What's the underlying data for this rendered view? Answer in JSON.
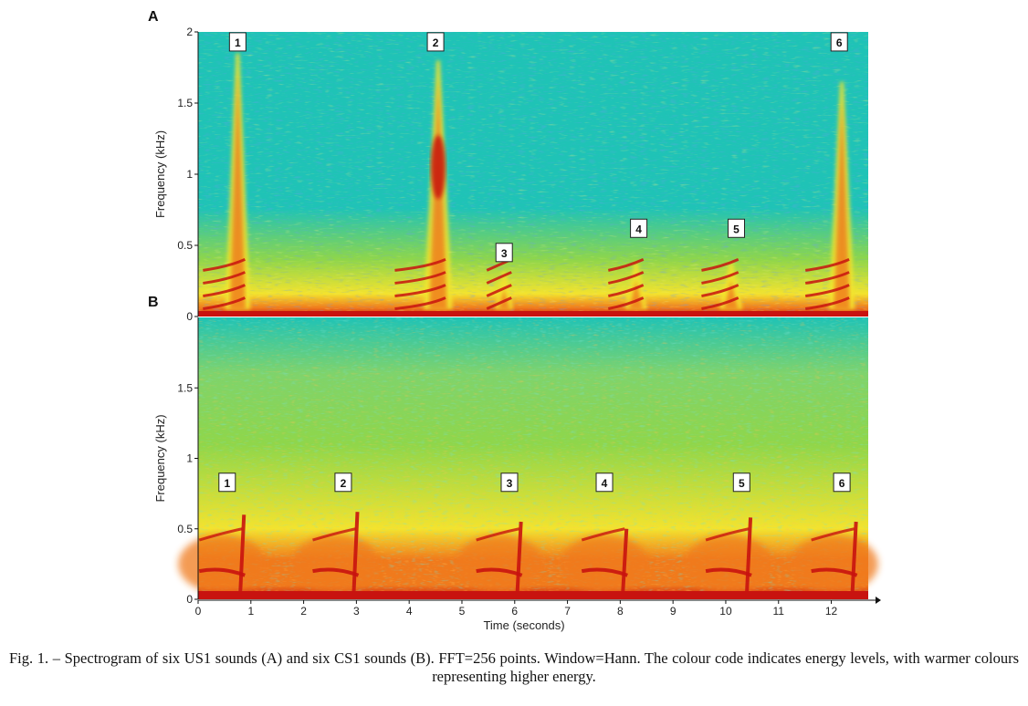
{
  "figure": {
    "caption": "Fig. 1. – Spectrogram of six US1 sounds (A) and six CS1 sounds (B). FFT=256 points. Window=Hann. The colour code indicates energy levels, with warmer colours representing higher energy.",
    "colors": {
      "low": "#2a6fd6",
      "mid_low": "#1fc3b6",
      "mid": "#8fd64a",
      "mid_high": "#f3e32e",
      "high": "#f07a1c",
      "max": "#c8130f"
    }
  },
  "chart_data": [
    {
      "type": "heatmap",
      "panel_label": "A",
      "xlabel": "",
      "ylabel": "Frequency (kHz)",
      "xlim": [
        0,
        12.7
      ],
      "ylim": [
        0,
        2
      ],
      "yticks": [
        "0",
        "0.5",
        "1",
        "1.5",
        "2"
      ],
      "markers": [
        {
          "label": "1",
          "x": 0.75,
          "y": 1.93
        },
        {
          "label": "2",
          "x": 4.5,
          "y": 1.93
        },
        {
          "label": "3",
          "x": 5.8,
          "y": 0.45
        },
        {
          "label": "4",
          "x": 8.35,
          "y": 0.62
        },
        {
          "label": "5",
          "x": 10.2,
          "y": 0.62
        },
        {
          "label": "6",
          "x": 12.15,
          "y": 1.93
        }
      ],
      "events": [
        {
          "t": 0.75,
          "fmax": 1.85,
          "strength": 1.0
        },
        {
          "t": 4.55,
          "fmax": 1.8,
          "strength": 1.25
        },
        {
          "t": 5.8,
          "fmax": 0.32,
          "strength": 0.5
        },
        {
          "t": 8.3,
          "fmax": 0.38,
          "strength": 0.8
        },
        {
          "t": 10.1,
          "fmax": 0.38,
          "strength": 0.85
        },
        {
          "t": 12.2,
          "fmax": 1.65,
          "strength": 1.05
        }
      ]
    },
    {
      "type": "heatmap",
      "panel_label": "B",
      "xlabel": "Time (seconds)",
      "ylabel": "Frequency (kHz)",
      "xlim": [
        0,
        12.7
      ],
      "ylim": [
        0,
        2
      ],
      "xticks": [
        "0",
        "1",
        "2",
        "3",
        "4",
        "5",
        "6",
        "7",
        "8",
        "9",
        "10",
        "11",
        "12"
      ],
      "yticks": [
        "0",
        "0.5",
        "1",
        "1.5"
      ],
      "markers": [
        {
          "label": "1",
          "x": 0.55,
          "y": 0.83
        },
        {
          "label": "2",
          "x": 2.75,
          "y": 0.83
        },
        {
          "label": "3",
          "x": 5.9,
          "y": 0.83
        },
        {
          "label": "4",
          "x": 7.7,
          "y": 0.83
        },
        {
          "label": "5",
          "x": 10.3,
          "y": 0.83
        },
        {
          "label": "6",
          "x": 12.2,
          "y": 0.83
        }
      ],
      "events": [
        {
          "t": 0.8,
          "fmax": 0.6,
          "strength": 1.0
        },
        {
          "t": 2.95,
          "fmax": 0.62,
          "strength": 1.0
        },
        {
          "t": 6.05,
          "fmax": 0.55,
          "strength": 0.9
        },
        {
          "t": 8.05,
          "fmax": 0.5,
          "strength": 0.85
        },
        {
          "t": 10.4,
          "fmax": 0.58,
          "strength": 0.95
        },
        {
          "t": 12.4,
          "fmax": 0.55,
          "strength": 0.9
        }
      ]
    }
  ]
}
